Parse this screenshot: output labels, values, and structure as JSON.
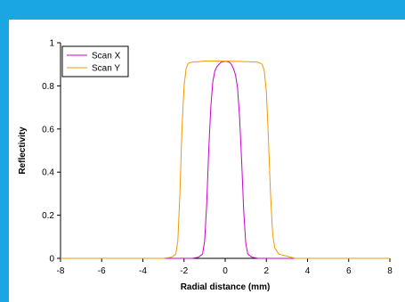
{
  "chart_data": {
    "type": "line",
    "title": "",
    "xlabel": "Radial distance (mm)",
    "ylabel": "Reflectivity",
    "xlim": [
      -8,
      8
    ],
    "ylim": [
      0,
      1
    ],
    "xticks": [
      -8,
      -6,
      -4,
      -2,
      0,
      2,
      4,
      6,
      8
    ],
    "yticks": [
      0,
      0.2,
      0.4,
      0.6,
      0.8,
      1
    ],
    "xtick_labels": [
      "-8",
      "-6",
      "-4",
      "-2",
      "0",
      "2",
      "4",
      "6",
      "8"
    ],
    "ytick_labels": [
      "0",
      "0.2",
      "0.4",
      "0.6",
      "0.8",
      "1"
    ],
    "grid": false,
    "legend_position": "top-left",
    "series": [
      {
        "name": "Scan X",
        "color": "#cc00cc",
        "x": [
          -8,
          -1.6,
          -1.3,
          -1.1,
          -1.0,
          -0.9,
          -0.8,
          -0.7,
          -0.6,
          -0.5,
          -0.4,
          -0.3,
          -0.2,
          0,
          0.2,
          0.3,
          0.4,
          0.5,
          0.6,
          0.7,
          0.8,
          0.9,
          1.0,
          1.1,
          1.3,
          1.6,
          8
        ],
        "y": [
          0,
          0,
          0.005,
          0.02,
          0.08,
          0.25,
          0.5,
          0.7,
          0.82,
          0.87,
          0.89,
          0.9,
          0.91,
          0.915,
          0.91,
          0.9,
          0.88,
          0.85,
          0.79,
          0.65,
          0.45,
          0.22,
          0.07,
          0.02,
          0.005,
          0,
          0
        ]
      },
      {
        "name": "Scan Y",
        "color": "#ee9a00",
        "x": [
          -8,
          -3.0,
          -2.6,
          -2.4,
          -2.3,
          -2.2,
          -2.1,
          -2.0,
          -1.9,
          -1.8,
          -1.6,
          -1.0,
          0,
          1.0,
          1.6,
          1.8,
          1.9,
          2.0,
          2.1,
          2.2,
          2.3,
          2.4,
          2.6,
          3.0,
          3.4,
          8
        ],
        "y": [
          0,
          0,
          0.005,
          0.02,
          0.08,
          0.3,
          0.6,
          0.8,
          0.88,
          0.905,
          0.91,
          0.915,
          0.915,
          0.913,
          0.91,
          0.9,
          0.87,
          0.77,
          0.55,
          0.3,
          0.12,
          0.05,
          0.02,
          0.01,
          0,
          0
        ]
      }
    ]
  }
}
